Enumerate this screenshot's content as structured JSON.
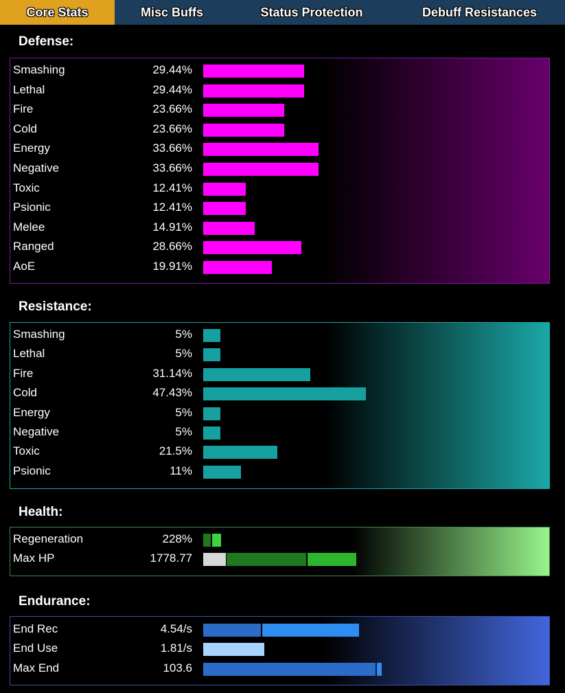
{
  "tabs": [
    {
      "label": "Core Stats",
      "active": true
    },
    {
      "label": "Misc Buffs",
      "active": false
    },
    {
      "label": "Status Protection",
      "active": false
    },
    {
      "label": "Debuff Resistances",
      "active": false
    }
  ],
  "defense": {
    "heading": "Defense:",
    "bar_color": "#ff00ff",
    "rows": [
      {
        "label": "Smashing",
        "value": "29.44%",
        "amount": 29.44
      },
      {
        "label": "Lethal",
        "value": "29.44%",
        "amount": 29.44
      },
      {
        "label": "Fire",
        "value": "23.66%",
        "amount": 23.66
      },
      {
        "label": "Cold",
        "value": "23.66%",
        "amount": 23.66
      },
      {
        "label": "Energy",
        "value": "33.66%",
        "amount": 33.66
      },
      {
        "label": "Negative",
        "value": "33.66%",
        "amount": 33.66
      },
      {
        "label": "Toxic",
        "value": "12.41%",
        "amount": 12.41
      },
      {
        "label": "Psionic",
        "value": "12.41%",
        "amount": 12.41
      },
      {
        "label": "Melee",
        "value": "14.91%",
        "amount": 14.91
      },
      {
        "label": "Ranged",
        "value": "28.66%",
        "amount": 28.66
      },
      {
        "label": "AoE",
        "value": "19.91%",
        "amount": 19.91
      }
    ]
  },
  "resistance": {
    "heading": "Resistance:",
    "bar_color": "#17a0a0",
    "rows": [
      {
        "label": "Smashing",
        "value": "5%",
        "amount": 5
      },
      {
        "label": "Lethal",
        "value": "5%",
        "amount": 5
      },
      {
        "label": "Fire",
        "value": "31.14%",
        "amount": 31.14
      },
      {
        "label": "Cold",
        "value": "47.43%",
        "amount": 47.43
      },
      {
        "label": "Energy",
        "value": "5%",
        "amount": 5
      },
      {
        "label": "Negative",
        "value": "5%",
        "amount": 5
      },
      {
        "label": "Toxic",
        "value": "21.5%",
        "amount": 21.5
      },
      {
        "label": "Psionic",
        "value": "11%",
        "amount": 11
      }
    ]
  },
  "health": {
    "heading": "Health:",
    "rows": [
      {
        "label": "Regeneration",
        "value": "228%"
      },
      {
        "label": "Max HP",
        "value": "1778.77"
      }
    ]
  },
  "endurance": {
    "heading": "Endurance:",
    "rows": [
      {
        "label": "End Rec",
        "value": "4.54/s"
      },
      {
        "label": "End Use",
        "value": "1.81/s"
      },
      {
        "label": "Max End",
        "value": "103.6"
      }
    ]
  }
}
